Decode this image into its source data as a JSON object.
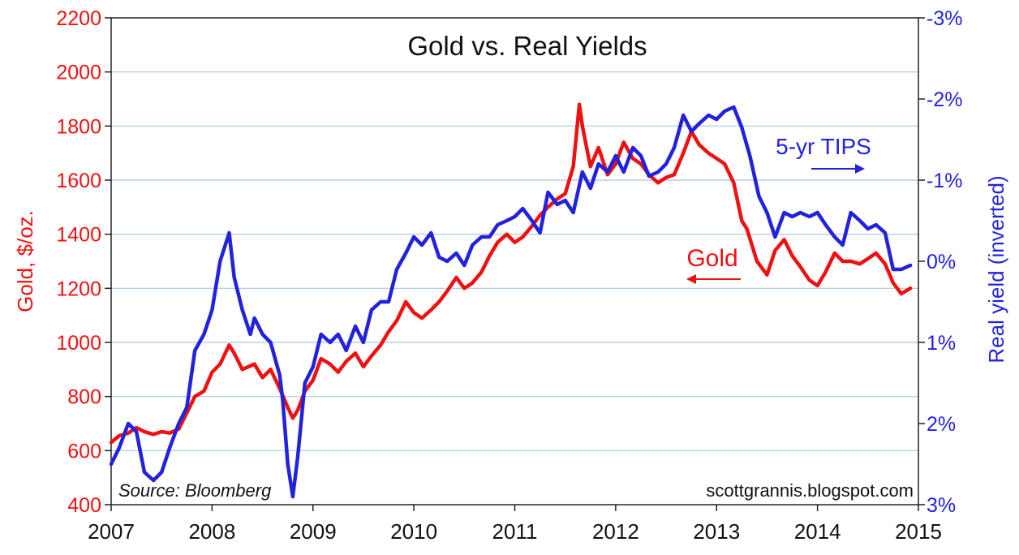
{
  "chart_data": {
    "type": "line",
    "title": "Gold vs. Real Yields",
    "source_note": "Source: Bloomberg",
    "credit": "scottgrannis.blogspot.com",
    "x_axis": {
      "range": [
        2007,
        2015
      ],
      "ticks": [
        "2007",
        "2008",
        "2009",
        "2010",
        "2011",
        "2012",
        "2013",
        "2014",
        "2015"
      ]
    },
    "y_left": {
      "label": "Gold, $/oz.",
      "range": [
        400,
        2200
      ],
      "ticks": [
        "400",
        "600",
        "800",
        "1000",
        "1200",
        "1400",
        "1600",
        "1800",
        "2000",
        "2200"
      ],
      "color": "#ee1111"
    },
    "y_right": {
      "label": "Real yield (inverted)",
      "inverted": true,
      "range": [
        3,
        -3
      ],
      "ticks": [
        "3%",
        "2%",
        "1%",
        "0%",
        "-1%",
        "-2%",
        "-3%"
      ],
      "tick_values": [
        3,
        2,
        1,
        0,
        -1,
        -2,
        -3
      ],
      "color": "#2222dd"
    },
    "grid": true,
    "annotations": {
      "gold": "Gold",
      "tips": "5-yr TIPS"
    },
    "series": [
      {
        "name": "Gold",
        "axis": "left",
        "color": "#ee1111",
        "x": [
          2007.0,
          2007.08,
          2007.17,
          2007.25,
          2007.33,
          2007.42,
          2007.5,
          2007.58,
          2007.67,
          2007.75,
          2007.83,
          2007.92,
          2008.0,
          2008.08,
          2008.17,
          2008.22,
          2008.3,
          2008.42,
          2008.5,
          2008.58,
          2008.67,
          2008.75,
          2008.8,
          2008.85,
          2008.92,
          2009.0,
          2009.08,
          2009.17,
          2009.25,
          2009.33,
          2009.42,
          2009.5,
          2009.58,
          2009.67,
          2009.75,
          2009.83,
          2009.92,
          2010.0,
          2010.08,
          2010.17,
          2010.25,
          2010.33,
          2010.42,
          2010.5,
          2010.58,
          2010.67,
          2010.75,
          2010.83,
          2010.92,
          2011.0,
          2011.08,
          2011.17,
          2011.25,
          2011.33,
          2011.42,
          2011.5,
          2011.58,
          2011.64,
          2011.67,
          2011.75,
          2011.83,
          2011.92,
          2012.0,
          2012.08,
          2012.17,
          2012.25,
          2012.33,
          2012.42,
          2012.5,
          2012.58,
          2012.67,
          2012.75,
          2012.83,
          2012.92,
          2013.0,
          2013.08,
          2013.17,
          2013.25,
          2013.3,
          2013.4,
          2013.5,
          2013.58,
          2013.67,
          2013.75,
          2013.83,
          2013.92,
          2014.0,
          2014.08,
          2014.17,
          2014.25,
          2014.33,
          2014.42,
          2014.5,
          2014.58,
          2014.67,
          2014.75,
          2014.83,
          2014.92
        ],
        "values": [
          630,
          655,
          665,
          685,
          670,
          660,
          670,
          665,
          680,
          740,
          800,
          820,
          890,
          920,
          990,
          960,
          900,
          920,
          870,
          900,
          830,
          760,
          720,
          750,
          820,
          860,
          940,
          920,
          890,
          930,
          960,
          910,
          950,
          990,
          1040,
          1080,
          1150,
          1110,
          1090,
          1120,
          1150,
          1190,
          1240,
          1200,
          1220,
          1260,
          1320,
          1370,
          1400,
          1370,
          1390,
          1430,
          1470,
          1500,
          1530,
          1550,
          1650,
          1880,
          1800,
          1650,
          1720,
          1620,
          1660,
          1740,
          1680,
          1660,
          1620,
          1590,
          1610,
          1620,
          1700,
          1780,
          1730,
          1700,
          1680,
          1660,
          1590,
          1450,
          1420,
          1300,
          1250,
          1340,
          1380,
          1320,
          1280,
          1230,
          1210,
          1260,
          1330,
          1300,
          1300,
          1290,
          1310,
          1330,
          1290,
          1220,
          1180,
          1200
        ]
      },
      {
        "name": "5-yr TIPS",
        "axis": "right",
        "color": "#2222dd",
        "x": [
          2007.0,
          2007.08,
          2007.17,
          2007.25,
          2007.33,
          2007.42,
          2007.5,
          2007.58,
          2007.67,
          2007.75,
          2007.83,
          2007.92,
          2008.0,
          2008.08,
          2008.17,
          2008.22,
          2008.3,
          2008.38,
          2008.42,
          2008.5,
          2008.58,
          2008.67,
          2008.7,
          2008.75,
          2008.8,
          2008.85,
          2008.92,
          2009.0,
          2009.08,
          2009.17,
          2009.25,
          2009.33,
          2009.42,
          2009.5,
          2009.58,
          2009.67,
          2009.75,
          2009.83,
          2009.92,
          2010.0,
          2010.08,
          2010.17,
          2010.25,
          2010.33,
          2010.42,
          2010.5,
          2010.58,
          2010.67,
          2010.75,
          2010.83,
          2010.92,
          2011.0,
          2011.08,
          2011.17,
          2011.25,
          2011.33,
          2011.42,
          2011.5,
          2011.58,
          2011.67,
          2011.75,
          2011.83,
          2011.92,
          2012.0,
          2012.08,
          2012.17,
          2012.25,
          2012.33,
          2012.42,
          2012.5,
          2012.58,
          2012.67,
          2012.75,
          2012.83,
          2012.92,
          2013.0,
          2013.08,
          2013.17,
          2013.25,
          2013.33,
          2013.42,
          2013.5,
          2013.58,
          2013.67,
          2013.75,
          2013.83,
          2013.92,
          2014.0,
          2014.08,
          2014.17,
          2014.25,
          2014.33,
          2014.42,
          2014.5,
          2014.58,
          2014.67,
          2014.75,
          2014.83,
          2014.92
        ],
        "values": [
          2.5,
          2.3,
          2.0,
          2.1,
          2.6,
          2.7,
          2.6,
          2.3,
          2.0,
          1.8,
          1.1,
          0.9,
          0.6,
          0.0,
          -0.35,
          0.2,
          0.6,
          0.9,
          0.7,
          0.9,
          1.0,
          1.4,
          1.7,
          2.5,
          2.9,
          2.4,
          1.5,
          1.3,
          0.9,
          1.0,
          0.9,
          1.1,
          0.8,
          1.0,
          0.6,
          0.5,
          0.5,
          0.1,
          -0.1,
          -0.3,
          -0.2,
          -0.35,
          -0.05,
          0.0,
          -0.1,
          0.05,
          -0.2,
          -0.3,
          -0.3,
          -0.45,
          -0.5,
          -0.55,
          -0.65,
          -0.5,
          -0.35,
          -0.85,
          -0.7,
          -0.75,
          -0.6,
          -1.1,
          -0.9,
          -1.2,
          -1.1,
          -1.3,
          -1.1,
          -1.4,
          -1.3,
          -1.05,
          -1.1,
          -1.2,
          -1.4,
          -1.8,
          -1.6,
          -1.7,
          -1.8,
          -1.75,
          -1.85,
          -1.9,
          -1.65,
          -1.3,
          -0.8,
          -0.6,
          -0.3,
          -0.6,
          -0.55,
          -0.6,
          -0.55,
          -0.6,
          -0.45,
          -0.3,
          -0.2,
          -0.6,
          -0.5,
          -0.4,
          -0.45,
          -0.35,
          0.1,
          0.1,
          0.05
        ]
      }
    ]
  }
}
